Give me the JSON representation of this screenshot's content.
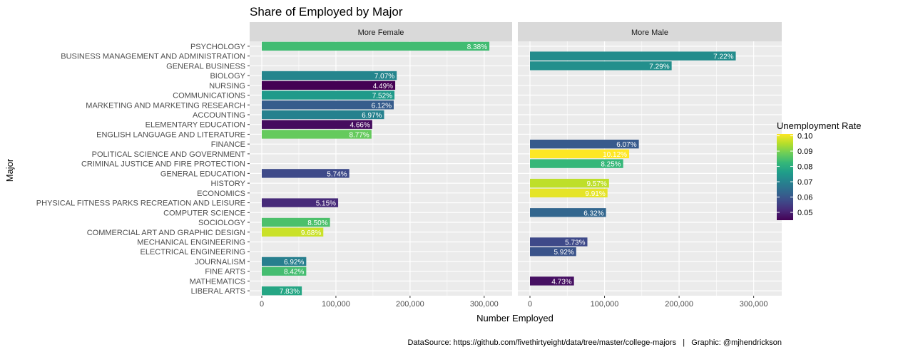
{
  "chart_data": {
    "type": "bar",
    "orientation": "horizontal",
    "title": "Share of Employed by Major",
    "xlabel": "Number Employed",
    "ylabel": "Major",
    "xlim": [
      0,
      330000
    ],
    "x_ticks": [
      0,
      100000,
      200000,
      300000
    ],
    "x_tick_labels": [
      "0",
      "100,000",
      "200,000",
      "300,000"
    ],
    "grid": true,
    "facets": [
      "More Female",
      "More Male"
    ],
    "categories": [
      "PSYCHOLOGY",
      "BUSINESS MANAGEMENT AND ADMINISTRATION",
      "GENERAL BUSINESS",
      "BIOLOGY",
      "NURSING",
      "COMMUNICATIONS",
      "MARKETING AND MARKETING RESEARCH",
      "ACCOUNTING",
      "ELEMENTARY EDUCATION",
      "ENGLISH LANGUAGE AND LITERATURE",
      "FINANCE",
      "POLITICAL SCIENCE AND GOVERNMENT",
      "CRIMINAL JUSTICE AND FIRE PROTECTION",
      "GENERAL EDUCATION",
      "HISTORY",
      "ECONOMICS",
      "PHYSICAL FITNESS PARKS RECREATION AND LEISURE",
      "COMPUTER SCIENCE",
      "SOCIOLOGY",
      "COMMERCIAL ART AND GRAPHIC DESIGN",
      "MECHANICAL ENGINEERING",
      "ELECTRICAL ENGINEERING",
      "JOURNALISM",
      "FINE ARTS",
      "MATHEMATICS",
      "LIBERAL ARTS"
    ],
    "bars": [
      {
        "major": "PSYCHOLOGY",
        "facet": "More Female",
        "employed": 307000,
        "unemployment_rate": 0.0838,
        "label": "8.38%"
      },
      {
        "major": "BUSINESS MANAGEMENT AND ADMINISTRATION",
        "facet": "More Male",
        "employed": 276000,
        "unemployment_rate": 0.0722,
        "label": "7.22%"
      },
      {
        "major": "GENERAL BUSINESS",
        "facet": "More Male",
        "employed": 190000,
        "unemployment_rate": 0.0729,
        "label": "7.29%"
      },
      {
        "major": "BIOLOGY",
        "facet": "More Female",
        "employed": 182000,
        "unemployment_rate": 0.0707,
        "label": "7.07%"
      },
      {
        "major": "NURSING",
        "facet": "More Female",
        "employed": 180000,
        "unemployment_rate": 0.0449,
        "label": "4.49%"
      },
      {
        "major": "COMMUNICATIONS",
        "facet": "More Female",
        "employed": 179000,
        "unemployment_rate": 0.0752,
        "label": "7.52%"
      },
      {
        "major": "MARKETING AND MARKETING RESEARCH",
        "facet": "More Female",
        "employed": 178000,
        "unemployment_rate": 0.0612,
        "label": "6.12%"
      },
      {
        "major": "ACCOUNTING",
        "facet": "More Female",
        "employed": 165000,
        "unemployment_rate": 0.0697,
        "label": "6.97%"
      },
      {
        "major": "ELEMENTARY EDUCATION",
        "facet": "More Female",
        "employed": 149000,
        "unemployment_rate": 0.0466,
        "label": "4.66%"
      },
      {
        "major": "ENGLISH LANGUAGE AND LITERATURE",
        "facet": "More Female",
        "employed": 148000,
        "unemployment_rate": 0.0877,
        "label": "8.77%"
      },
      {
        "major": "FINANCE",
        "facet": "More Male",
        "employed": 146000,
        "unemployment_rate": 0.0607,
        "label": "6.07%"
      },
      {
        "major": "POLITICAL SCIENCE AND GOVERNMENT",
        "facet": "More Male",
        "employed": 133000,
        "unemployment_rate": 0.1012,
        "label": "10.12%"
      },
      {
        "major": "CRIMINAL JUSTICE AND FIRE PROTECTION",
        "facet": "More Male",
        "employed": 125000,
        "unemployment_rate": 0.0825,
        "label": "8.25%"
      },
      {
        "major": "GENERAL EDUCATION",
        "facet": "More Female",
        "employed": 118000,
        "unemployment_rate": 0.0574,
        "label": "5.74%"
      },
      {
        "major": "HISTORY",
        "facet": "More Male",
        "employed": 106000,
        "unemployment_rate": 0.0957,
        "label": "9.57%"
      },
      {
        "major": "ECONOMICS",
        "facet": "More Male",
        "employed": 104000,
        "unemployment_rate": 0.0991,
        "label": "9.91%"
      },
      {
        "major": "PHYSICAL FITNESS PARKS RECREATION AND LEISURE",
        "facet": "More Female",
        "employed": 103000,
        "unemployment_rate": 0.0515,
        "label": "5.15%"
      },
      {
        "major": "COMPUTER SCIENCE",
        "facet": "More Male",
        "employed": 102000,
        "unemployment_rate": 0.0632,
        "label": "6.32%"
      },
      {
        "major": "SOCIOLOGY",
        "facet": "More Female",
        "employed": 92000,
        "unemployment_rate": 0.085,
        "label": "8.50%"
      },
      {
        "major": "COMMERCIAL ART AND GRAPHIC DESIGN",
        "facet": "More Female",
        "employed": 83000,
        "unemployment_rate": 0.0968,
        "label": "9.68%"
      },
      {
        "major": "MECHANICAL ENGINEERING",
        "facet": "More Male",
        "employed": 77000,
        "unemployment_rate": 0.0573,
        "label": "5.73%"
      },
      {
        "major": "ELECTRICAL ENGINEERING",
        "facet": "More Male",
        "employed": 62000,
        "unemployment_rate": 0.0592,
        "label": "5.92%"
      },
      {
        "major": "JOURNALISM",
        "facet": "More Female",
        "employed": 60000,
        "unemployment_rate": 0.0692,
        "label": "6.92%"
      },
      {
        "major": "FINE ARTS",
        "facet": "More Female",
        "employed": 60000,
        "unemployment_rate": 0.0842,
        "label": "8.42%"
      },
      {
        "major": "MATHEMATICS",
        "facet": "More Male",
        "employed": 59000,
        "unemployment_rate": 0.0473,
        "label": "4.73%"
      },
      {
        "major": "LIBERAL ARTS",
        "facet": "More Female",
        "employed": 54000,
        "unemployment_rate": 0.0783,
        "label": "7.83%"
      }
    ],
    "legend": {
      "title": "Unemployment Rate",
      "position": "right",
      "type": "colorbar",
      "palette": "viridis",
      "range": [
        0.0449,
        0.1012
      ],
      "ticks": [
        0.05,
        0.06,
        0.07,
        0.08,
        0.09,
        0.1
      ],
      "tick_labels": [
        "0.05",
        "0.06",
        "0.07",
        "0.08",
        "0.09",
        "0.10"
      ]
    },
    "caption": "DataSource: https://github.com/fivethirtyeight/data/tree/master/college-majors   |   Graphic: @mjhendrickson"
  },
  "colors": {
    "panel_background": "#ebebeb",
    "grid": "#ffffff",
    "strip_background": "#d9d9d9",
    "viridis": [
      "#440154",
      "#482878",
      "#3e4a89",
      "#31688e",
      "#26828e",
      "#1f9e89",
      "#35b779",
      "#6ece58",
      "#b5de2b",
      "#fde725"
    ]
  }
}
